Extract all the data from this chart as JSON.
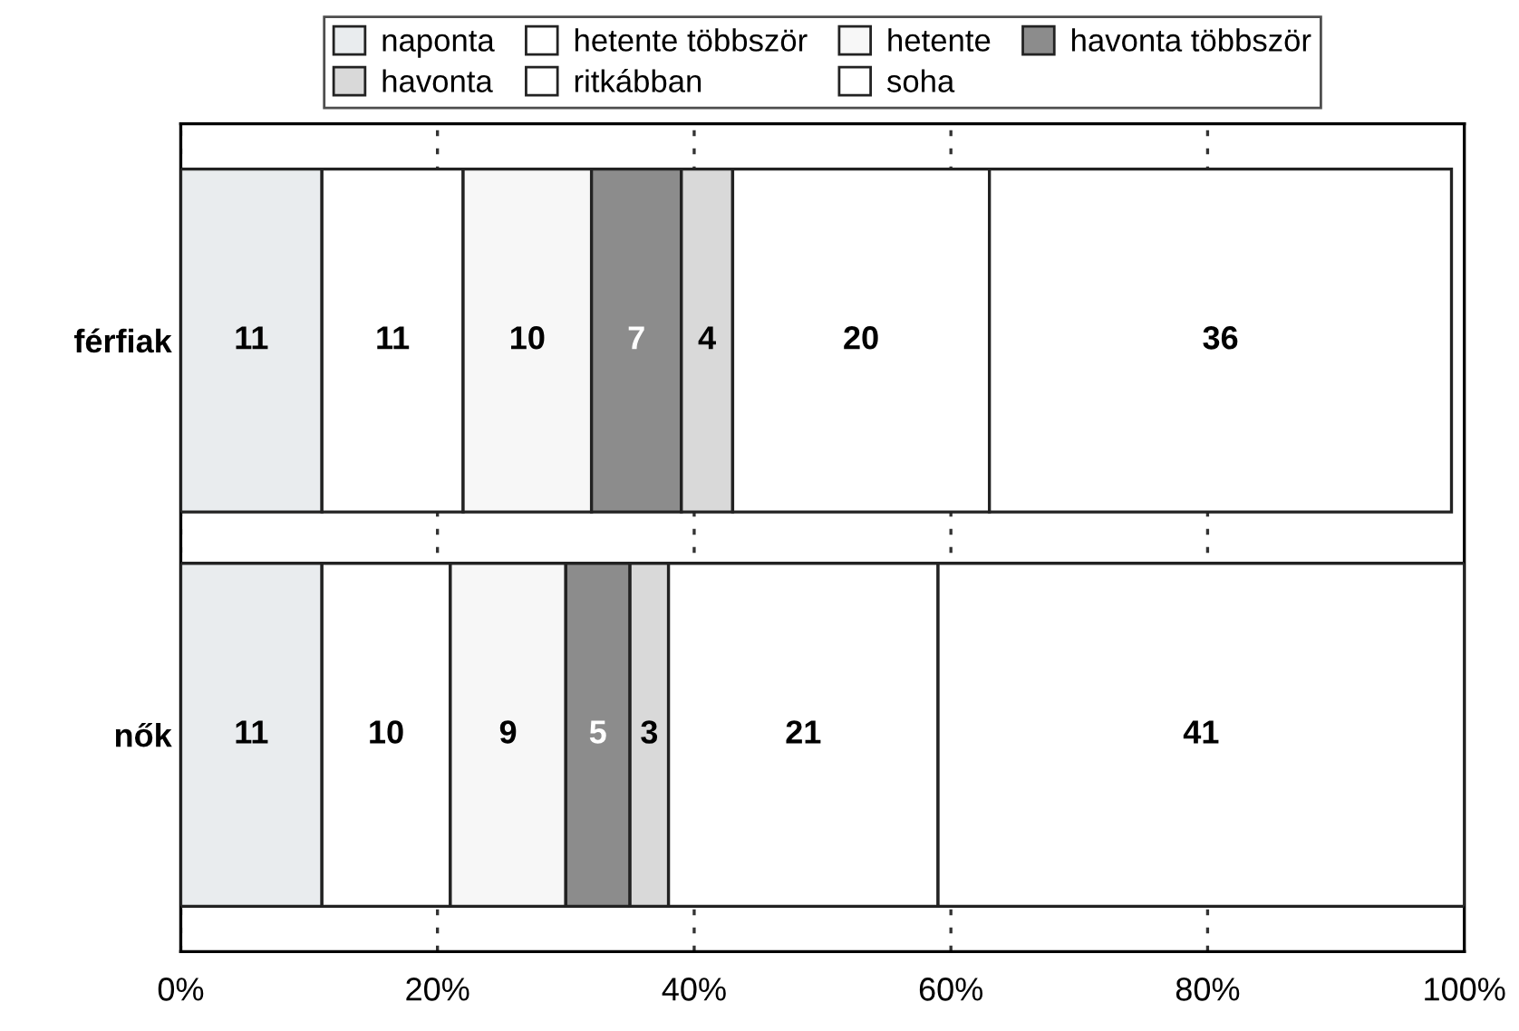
{
  "chart_data": {
    "type": "bar",
    "orientation": "horizontal",
    "stacked": true,
    "data_labels": true,
    "legend": "top",
    "grid": "x",
    "line_style": "dashed",
    "categories": [
      "férfiak",
      "nők"
    ],
    "series": [
      {
        "name": "naponta",
        "color": "#e9ecee",
        "values": [
          11,
          11
        ]
      },
      {
        "name": "hetente többször",
        "color": "#ffffff",
        "values": [
          11,
          10
        ]
      },
      {
        "name": "hetente",
        "color": "#f7f7f7",
        "values": [
          10,
          9
        ]
      },
      {
        "name": "havonta többször",
        "color": "#8c8c8c",
        "values": [
          7,
          5
        ]
      },
      {
        "name": "havonta",
        "color": "#d9d9d9",
        "values": [
          4,
          3
        ]
      },
      {
        "name": "ritkábban",
        "color": "#ffffff",
        "values": [
          20,
          21
        ]
      },
      {
        "name": "soha",
        "color": "#ffffff",
        "values": [
          36,
          41
        ]
      }
    ],
    "xlim": [
      0,
      100
    ],
    "xticks": [
      {
        "value": 0,
        "label": "0%"
      },
      {
        "value": 20,
        "label": "20%"
      },
      {
        "value": 40,
        "label": "40%"
      },
      {
        "value": 60,
        "label": "60%"
      },
      {
        "value": 80,
        "label": "80%"
      },
      {
        "value": 100,
        "label": "100%"
      }
    ]
  }
}
